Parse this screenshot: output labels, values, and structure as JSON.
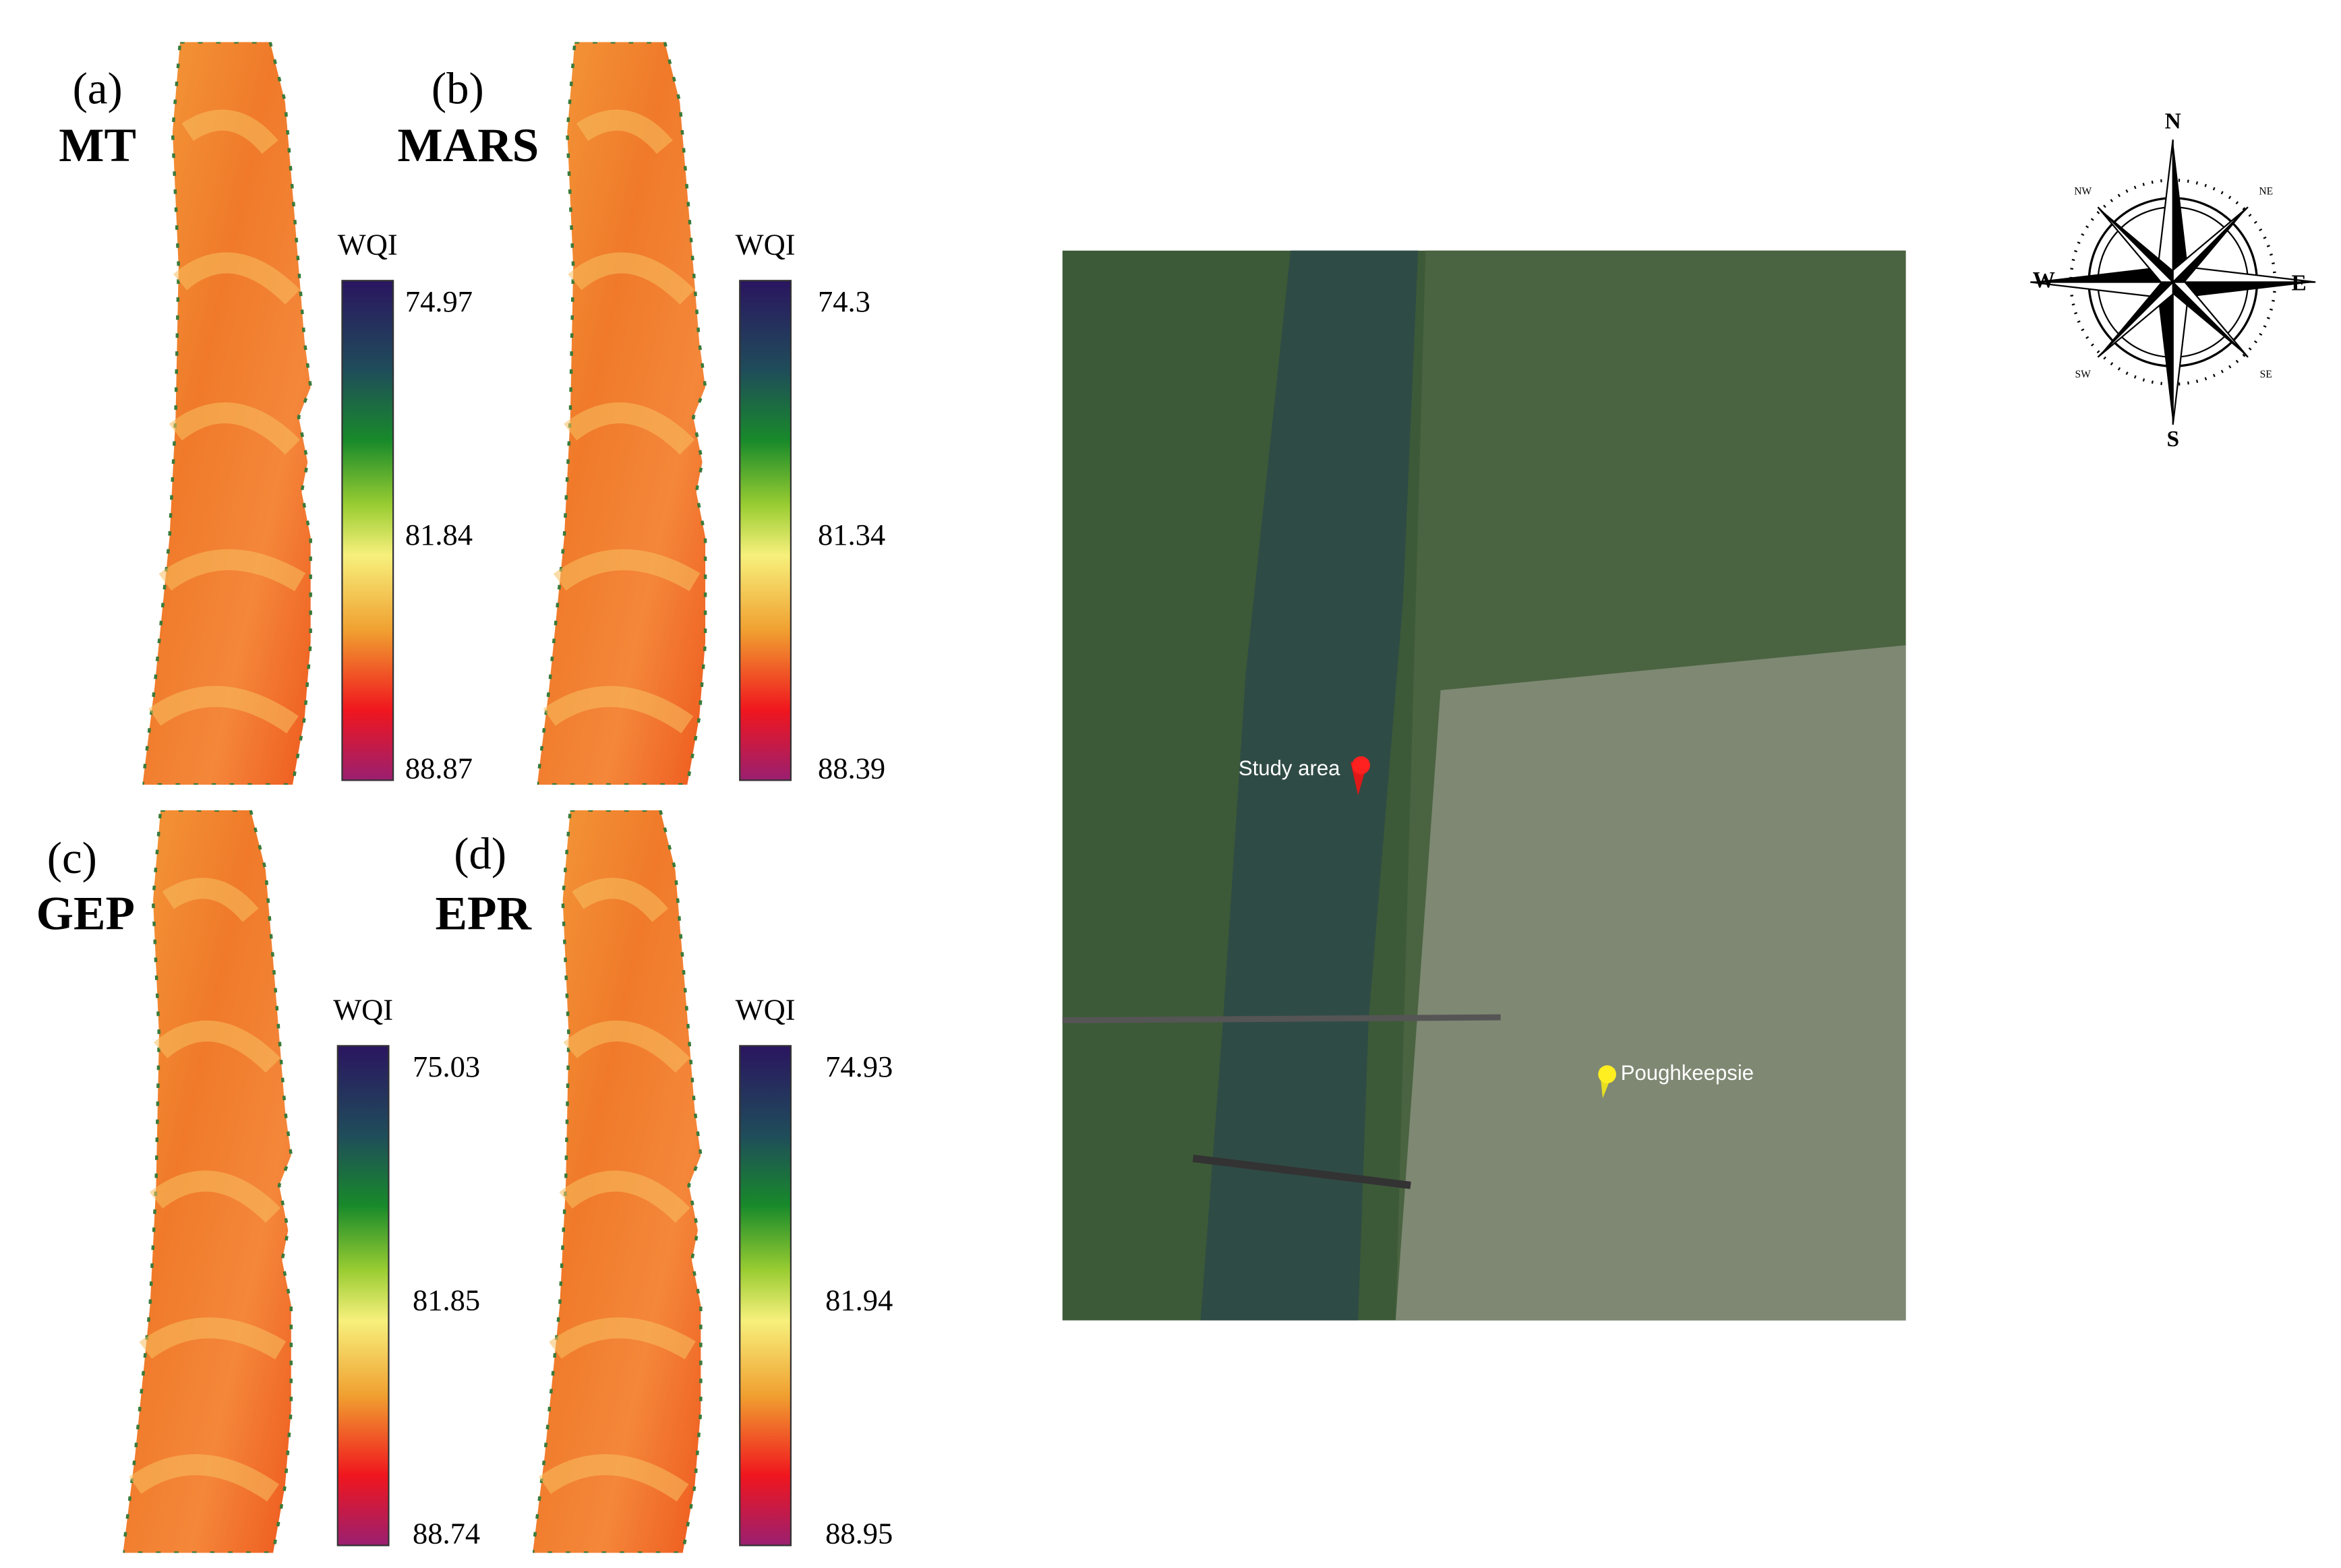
{
  "panels": [
    {
      "letter": "(a)",
      "model": "MT",
      "legend_title": "WQI",
      "ticks": [
        74.97,
        81.84,
        88.87
      ]
    },
    {
      "letter": "(b)",
      "model": "MARS",
      "legend_title": "WQI",
      "ticks": [
        74.3,
        81.34,
        88.39
      ]
    },
    {
      "letter": "(c)",
      "model": "GEP",
      "legend_title": "WQI",
      "ticks": [
        75.03,
        81.85,
        88.74
      ]
    },
    {
      "letter": "(d)",
      "model": "EPR",
      "legend_title": "WQI",
      "ticks": [
        74.93,
        81.94,
        88.95
      ]
    }
  ],
  "map": {
    "study_label": "Study area",
    "city_label": "Poughkeepsie"
  },
  "compass": {
    "n": "N",
    "s": "S",
    "e": "E",
    "w": "W",
    "ne": "NE",
    "nw": "NW",
    "se": "SE",
    "sw": "SW"
  }
}
